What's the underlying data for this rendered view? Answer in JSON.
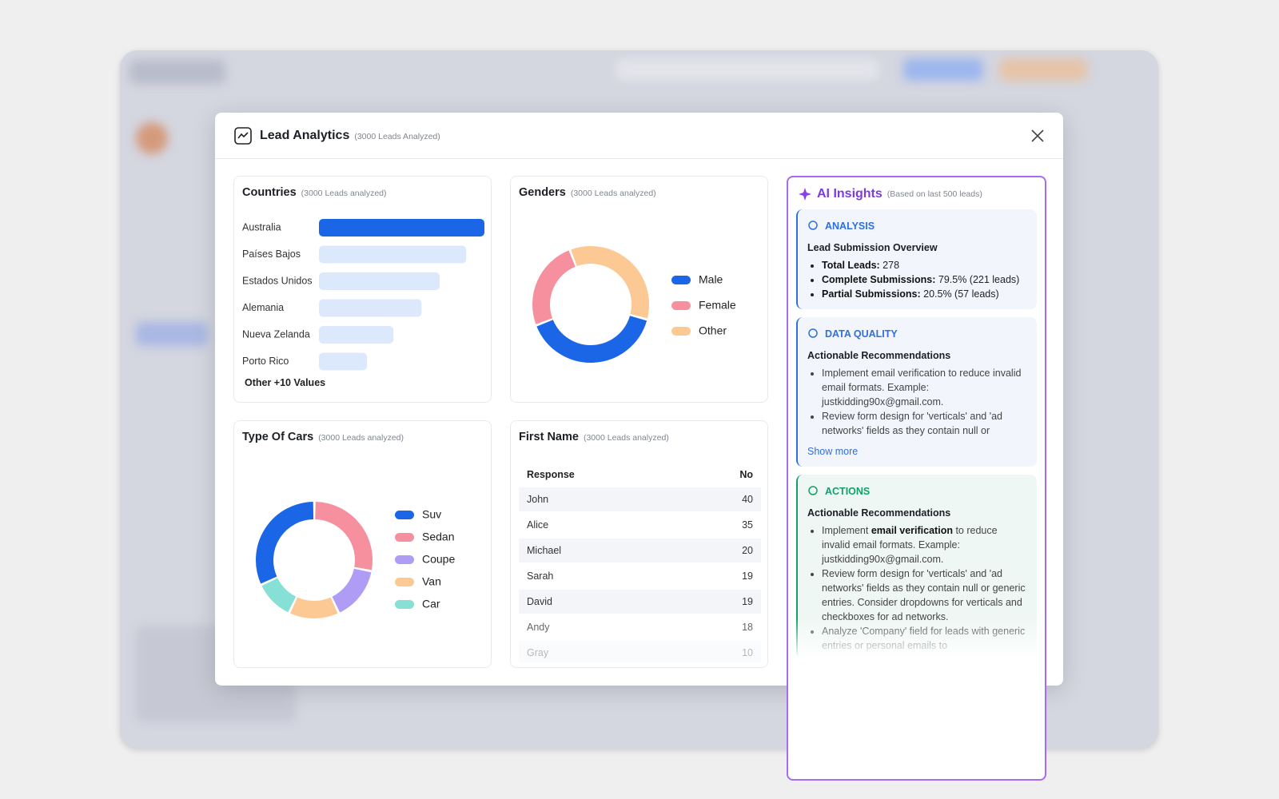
{
  "modal": {
    "title": "Lead Analytics",
    "subtitle": "(3000 Leads Analyzed)"
  },
  "chart_data": [
    {
      "type": "bar",
      "title": "Countries",
      "subtitle": "(3000 Leads analyzed)",
      "categories": [
        "Australia",
        "Países Bajos",
        "Estados Unidos",
        "Alemania",
        "Nueva Zelanda",
        "Porto Rico"
      ],
      "values": [
        100,
        89,
        73,
        62,
        45,
        29
      ],
      "color": "#1a66e6",
      "secondary_color": "#dce9fd",
      "footnote": "Other +10 Values"
    },
    {
      "type": "donut",
      "title": "Genders",
      "subtitle": "(3000 Leads analyzed)",
      "series": [
        {
          "name": "Male",
          "color": "#1a66e6",
          "value": 40
        },
        {
          "name": "Female",
          "color": "#f7909e",
          "value": 25
        },
        {
          "name": "Other",
          "color": "#fcc994",
          "value": 35
        }
      ]
    },
    {
      "type": "donut",
      "title": "Type Of Cars",
      "subtitle": "(3000 Leads analyzed)",
      "series": [
        {
          "name": "Suv",
          "color": "#1a66e6",
          "value": 32
        },
        {
          "name": "Sedan",
          "color": "#f7909e",
          "value": 28
        },
        {
          "name": "Coupe",
          "color": "#ae9cf5",
          "value": 15
        },
        {
          "name": "Van",
          "color": "#fcc994",
          "value": 14
        },
        {
          "name": "Car",
          "color": "#86e0d6",
          "value": 11
        }
      ]
    }
  ],
  "first_name_table": {
    "title": "First Name",
    "subtitle": "(3000 Leads analyzed)",
    "header": [
      "Response",
      "No"
    ],
    "rows": [
      [
        "John",
        40
      ],
      [
        "Alice",
        35
      ],
      [
        "Michael",
        20
      ],
      [
        "Sarah",
        19
      ],
      [
        "David",
        19
      ],
      [
        "Andy",
        18
      ],
      [
        "Gray",
        10
      ]
    ]
  },
  "insights": {
    "title": "AI Insights",
    "subtitle": "(Based on last 500 leads)",
    "sections": [
      {
        "label": "ANALYSIS",
        "heading": "Lead Submission Overview",
        "items": [
          [
            {
              "text": "Total Leads:",
              "bold": true
            },
            {
              "text": " 278"
            }
          ],
          [
            {
              "text": "Complete Submissions:",
              "bold": true
            },
            {
              "text": " 79.5% (221 leads)"
            }
          ],
          [
            {
              "text": "Partial Submissions:",
              "bold": true
            },
            {
              "text": " 20.5% (57 leads)"
            }
          ]
        ]
      },
      {
        "label": "DATA QUALITY",
        "heading": "Actionable Recommendations",
        "items": [
          [
            {
              "text": "Implement email verification to reduce invalid email formats. Example: justkidding90x@gmail.com."
            }
          ],
          [
            {
              "text": "Review form design for 'verticals' and 'ad networks' fields as they contain null or"
            }
          ]
        ],
        "link": "Show more"
      },
      {
        "label": "ACTIONS",
        "heading": "Actionable Recommendations",
        "items": [
          [
            {
              "text": "Implement "
            },
            {
              "text": "email verification",
              "bold": true
            },
            {
              "text": " to reduce invalid email formats. Example: justkidding90x@gmail.com."
            }
          ],
          [
            {
              "text": "Review form design for 'verticals' and 'ad networks' fields as they contain null or generic entries. Consider dropdowns for verticals and checkboxes for ad networks."
            }
          ],
          [
            {
              "text": "Analyze 'Company' field for leads with generic entries or personal emails to"
            }
          ]
        ]
      }
    ]
  }
}
